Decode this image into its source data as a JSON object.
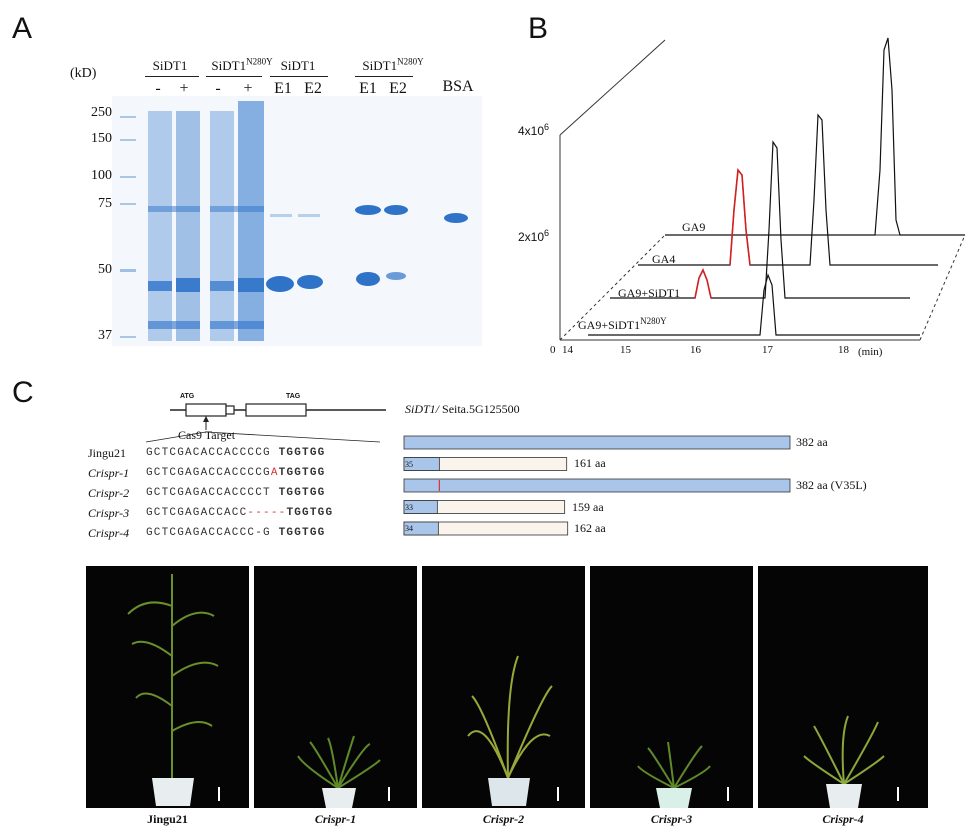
{
  "panel_a": {
    "letter": "A",
    "unit_label": "(kD)",
    "markers": [
      "250",
      "150",
      "100",
      "75",
      "50",
      "37"
    ],
    "groups": [
      {
        "name": "SiDT1",
        "superscript": "",
        "lanes": [
          "-",
          "+"
        ]
      },
      {
        "name": "SiDT1",
        "superscript": "N280Y",
        "lanes": [
          "-",
          "+"
        ]
      },
      {
        "name": "SiDT1",
        "superscript": "",
        "lanes": [
          "E1",
          "E2"
        ]
      },
      {
        "name": "SiDT1",
        "superscript": "N280Y",
        "lanes": [
          "E1",
          "E2"
        ]
      }
    ],
    "bsa_label": "BSA"
  },
  "panel_b": {
    "letter": "B",
    "y_ticks": [
      {
        "base": "4x10",
        "exp": "6"
      },
      {
        "base": "2x10",
        "exp": "6"
      }
    ],
    "x_ticks": [
      "0",
      "14",
      "15",
      "16",
      "17",
      "18"
    ],
    "x_unit": "(min)",
    "traces": [
      {
        "name": "GA9",
        "superscript": ""
      },
      {
        "name": "GA4",
        "superscript": ""
      },
      {
        "name": "GA9+SiDT1",
        "superscript": ""
      },
      {
        "name": "GA9+SiDT1",
        "superscript": "N280Y"
      }
    ],
    "colors": {
      "ga": "#111111",
      "ga4": "#d42020",
      "plane": "#333333"
    }
  },
  "panel_c": {
    "letter": "C",
    "gene_label": "SiDT1/",
    "gene_id": " Seita.5G125500",
    "atg_label": "ATG",
    "tag_label": "TAG",
    "cas9_label": "Cas9 Target",
    "alleles": [
      {
        "name": "Jingu21",
        "italic": false,
        "seq_pre": "GCTCGACACCACCCCG",
        "mut": "",
        "seq_post": " TGGTGG",
        "protein_len": 382,
        "aa_label": "382 aa",
        "mut_marker": ""
      },
      {
        "name": "Crispr-1",
        "italic": true,
        "seq_pre": "GCTCGAGACCACCCCG",
        "mut": "A",
        "seq_post": "TGGTGG",
        "protein_len": 161,
        "aa_label": "161 aa",
        "mut_marker": "35"
      },
      {
        "name": "Crispr-2",
        "italic": true,
        "seq_pre": "GCTCGAGACCACCCCT",
        "mut": "",
        "seq_post": " TGGTGG",
        "protein_len": 382,
        "aa_label": "382 aa (V35L)",
        "mut_marker": ""
      },
      {
        "name": "Crispr-3",
        "italic": true,
        "seq_pre": "GCTCGAGACCACC",
        "mut": "-----",
        "seq_post": "TGGTGG",
        "protein_len": 159,
        "aa_label": "159 aa",
        "mut_marker": "33"
      },
      {
        "name": "Crispr-4",
        "italic": true,
        "seq_pre": "GCTCGAGACCACCC-G",
        "mut": "",
        "seq_post": " TGGTGG",
        "protein_len": 162,
        "aa_label": "162 aa",
        "mut_marker": "34"
      }
    ],
    "colors": {
      "protein": "#a9c6ea",
      "truncated": "#fbf4ec",
      "mutation": "#e03030",
      "outline": "#333333"
    },
    "photos": [
      {
        "label": "Jingu21",
        "italic": false
      },
      {
        "label": "Crispr-1",
        "italic": true
      },
      {
        "label": "Crispr-2",
        "italic": true
      },
      {
        "label": "Crispr-3",
        "italic": true
      },
      {
        "label": "Crispr-4",
        "italic": true
      }
    ]
  }
}
